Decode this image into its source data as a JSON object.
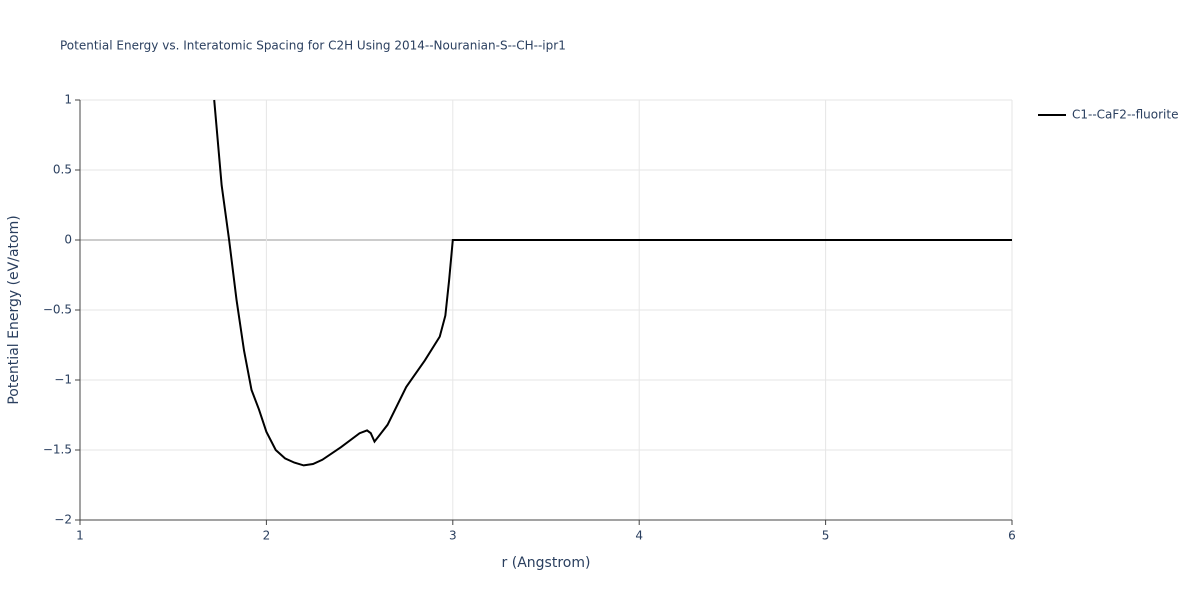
{
  "chart_data": {
    "type": "line",
    "title": "Potential Energy vs. Interatomic Spacing for C2H Using 2014--Nouranian-S--CH--ipr1",
    "x_label": "r (Angstrom)",
    "y_label": "Potential Energy (eV/atom)",
    "x": [
      1.72,
      1.76,
      1.8,
      1.84,
      1.88,
      1.92,
      1.96,
      2.0,
      2.05,
      2.1,
      2.15,
      2.2,
      2.25,
      2.3,
      2.4,
      2.5,
      2.54,
      2.56,
      2.58,
      2.65,
      2.75,
      2.85,
      2.93,
      2.96,
      2.98,
      3.0,
      6.0
    ],
    "series": [
      {
        "name": "C1--CaF2--fluorite",
        "color": "#000000",
        "values": [
          1.0,
          0.39,
          0.0,
          -0.43,
          -0.79,
          -1.07,
          -1.21,
          -1.37,
          -1.5,
          -1.56,
          -1.59,
          -1.61,
          -1.6,
          -1.57,
          -1.48,
          -1.38,
          -1.36,
          -1.38,
          -1.44,
          -1.32,
          -1.05,
          -0.86,
          -0.69,
          -0.54,
          -0.29,
          0.0,
          0.0
        ]
      }
    ],
    "xlim": [
      1,
      6
    ],
    "xticks": [
      1,
      2,
      3,
      4,
      5,
      6
    ],
    "ylim": [
      -2,
      1
    ],
    "yticks": [
      1,
      {
        "value": 0.5,
        "label": "0.5"
      },
      0,
      {
        "value": -0.5,
        "label": "−0.5"
      },
      {
        "value": -1,
        "label": "−1"
      },
      {
        "value": -1.5,
        "label": "−1.5"
      },
      {
        "value": -2,
        "label": "−2"
      }
    ],
    "grid": true,
    "legend": "top-right"
  }
}
